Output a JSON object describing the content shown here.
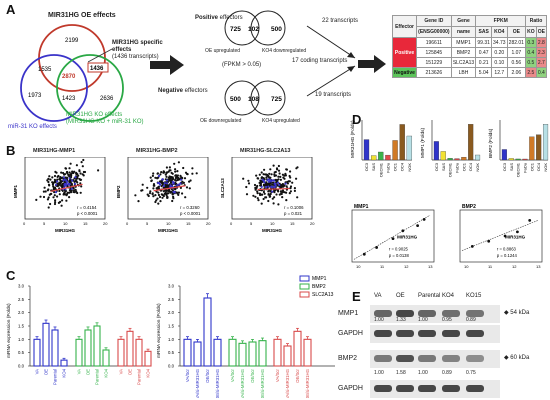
{
  "panelA": {
    "label": "A",
    "venn1": {
      "title": "MIR31HG OE effects",
      "title_color": "#c0392b",
      "ko_label": "miR-31 KO effects",
      "ko_color": "#3a33c9",
      "kos_label_line1": "MIR31HG KO effects",
      "kos_label_line2": "(MIR31HG KO + miR-31 KO)",
      "kos_color": "#2aa845",
      "counts": {
        "oe_only": "2199",
        "oe_mir": "1535",
        "center": "2870",
        "oe_kos": "1436",
        "mir_only": "1973",
        "mir_kos": "1423",
        "kos_only": "2636"
      },
      "specific_line1": "MIR31HG specific",
      "specific_line2": "effects",
      "specific_line3": "(1436 transcripts)"
    },
    "venn_pos": {
      "title_bold": "Positive",
      "title_rest": " effectors",
      "left": "725",
      "mid": "102",
      "right": "500",
      "label_left": "OE upregulated",
      "label_right": "KO4 downregulated"
    },
    "venn_neg": {
      "title_bold": "Negative",
      "title_rest": " effectors",
      "left": "500",
      "mid": "108",
      "right": "725",
      "label_left": "OE downregulated",
      "label_right": "KO4 upregulated"
    },
    "fpkm_note": "(FPKM > 0.05)",
    "transcripts_pos": "22 transcripts",
    "transcripts_mid": "17 coding transcripts",
    "transcripts_neg": "19 transcripts",
    "table": {
      "headers": [
        "Effector",
        "Gene ID",
        "Gene",
        "FPKM",
        "",
        "",
        "Ratio",
        ""
      ],
      "subheaders": [
        "",
        "(ENSG00000)",
        "name",
        "SAS",
        "KO4",
        "OE",
        "KO",
        "OE"
      ],
      "effector_pos": "Positive",
      "effector_neg": "Negative",
      "rows": [
        [
          "196611",
          "MMP1",
          "99.31",
          "34.73",
          "282.01",
          "0.3",
          "2.8"
        ],
        [
          "125845",
          "BMP2",
          "0.47",
          "0.20",
          "1.07",
          "0.4",
          "2.3"
        ],
        [
          "151229",
          "SLC2A13",
          "0.21",
          "0.10",
          "0.56",
          "0.5",
          "2.7"
        ],
        [
          "213626",
          "LBH",
          "5.04",
          "12.7",
          "2.06",
          "2.5",
          "0.4"
        ]
      ]
    }
  },
  "panelB": {
    "label": "B",
    "plots": [
      {
        "title": "MIR31HG-MMP1",
        "ylabel": "MMP1",
        "xlabel": "MIR31HG",
        "r": "r = 0.4154",
        "p": "p < 0.0001"
      },
      {
        "title": "MIR31HG-BMP2",
        "ylabel": "BMP2",
        "xlabel": "MIR31HG",
        "r": "r = 0.3260",
        "p": "p < 0.0001"
      },
      {
        "title": "MIR31HG-SLC2A13",
        "ylabel": "SLC2A13",
        "xlabel": "MIR31HG",
        "r": "r = 0.1006",
        "p": "p = 0.021"
      }
    ],
    "xticks": [
      "0",
      "5",
      "10",
      "15",
      "20"
    ]
  },
  "panelC": {
    "label": "C",
    "ylabel": "mRNA expression (Folds)",
    "yticks": [
      "0.0",
      "0.5",
      "1.0",
      "1.5",
      "2.0",
      "2.5",
      "3.0"
    ],
    "legend": [
      {
        "name": "MMP1",
        "color": "#2f34c9"
      },
      {
        "name": "BMP2",
        "color": "#35b24a"
      },
      {
        "name": "SLC2A13",
        "color": "#d84a4a"
      }
    ],
    "left_groups": [
      "VA",
      "OE",
      "Parental",
      "KO4"
    ],
    "left_values": {
      "MMP1": [
        1.0,
        1.6,
        1.35,
        0.22
      ],
      "BMP2": [
        1.0,
        1.35,
        1.5,
        0.6
      ],
      "SLC2A13": [
        1.0,
        1.3,
        1.0,
        0.55
      ]
    },
    "right_groups": [
      "VA/Scr",
      "VA/si-MIR31HG",
      "OE/Scr",
      "OE/si-MIR31HG"
    ],
    "right_values": {
      "MMP1": [
        1.0,
        0.9,
        2.55,
        1.0
      ],
      "BMP2": [
        1.0,
        0.85,
        0.9,
        0.95
      ],
      "SLC2A13": [
        1.0,
        0.75,
        1.3,
        1.0
      ]
    }
  },
  "panelD": {
    "label": "D",
    "ylabel1": "MIR31HG (Folds)",
    "ylabel2": "MMP1 (Folds)",
    "ylabel3": "BMP2 (Folds)",
    "cells": [
      "OC3",
      "SAS",
      "OECM1",
      "FaDu",
      "OC1",
      "OC4",
      "NOK"
    ],
    "bar_colors": [
      "#2f34c9",
      "#f2e233",
      "#3db34b",
      "#e34a4a",
      "#d07a26",
      "#8a5a1f",
      "#b7e0e6"
    ],
    "mir31hg": [
      2.3,
      0.5,
      0.9,
      0.55,
      2.2,
      4.0,
      2.7
    ],
    "mmp1": [
      13.0,
      6.0,
      1.2,
      1.0,
      2.0,
      25.0,
      3.5
    ],
    "bmp2": [
      1.0,
      0.15,
      0.1,
      0.05,
      2.2,
      2.4,
      3.4
    ],
    "corr1": {
      "title": "MMP1",
      "xlabel": "MIR31HG",
      "r": "r = 0.9025",
      "p": "p = 0.0138"
    },
    "corr2": {
      "title": "BMP2",
      "xlabel": "MIR31HG",
      "r": "r = 0.8863",
      "p": "p = 0.1244"
    },
    "corr_xticks": [
      "10",
      "11",
      "12",
      "13"
    ]
  },
  "panelE": {
    "label": "E",
    "lanes": [
      "VA",
      "OE",
      "Parental",
      "KO4",
      "KO15"
    ],
    "mmp1_label": "MMP1",
    "mmp1_kda": "54 kDa",
    "mmp1_values": [
      "1.00",
      "1.33",
      "1.00",
      "0.95",
      "0.89"
    ],
    "bmp2_label": "BMP2",
    "bmp2_kda": "60 kDa",
    "bmp2_values": [
      "1.00",
      "1.58",
      "1.00",
      "0.89",
      "0.75"
    ],
    "gapdh_label": "GAPDH"
  }
}
